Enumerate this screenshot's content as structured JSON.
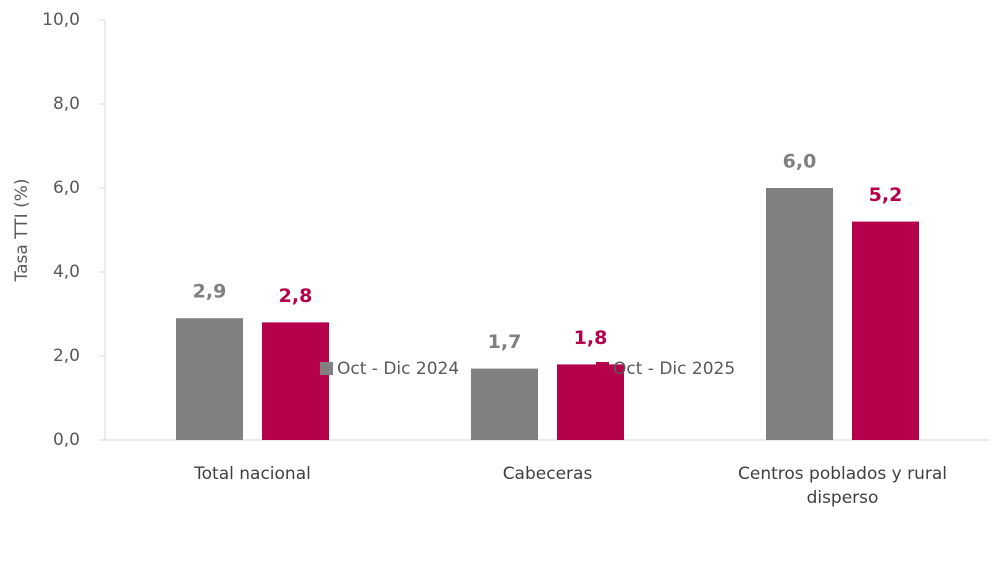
{
  "chart_data": {
    "type": "bar",
    "y_label": "Tasa TTI (%)",
    "categories": [
      "Total nacional",
      "Cabeceras",
      "Centros poblados y rural disperso"
    ],
    "series": [
      {
        "name": "Oct - Dic 2024",
        "color": "#808080",
        "values": [
          2.9,
          1.7,
          6.0
        ],
        "value_labels": [
          "2,9",
          "1,7",
          "6,0"
        ]
      },
      {
        "name": "Oct - Dic 2025",
        "color": "#b5004b",
        "values": [
          2.8,
          1.8,
          5.2
        ],
        "value_labels": [
          "2,8",
          "1,8",
          "5,2"
        ]
      }
    ],
    "ylim": [
      0,
      10
    ],
    "yticks": [
      {
        "value": 0,
        "label": "0,0"
      },
      {
        "value": 2,
        "label": "2,0"
      },
      {
        "value": 4,
        "label": "4,0"
      },
      {
        "value": 6,
        "label": "6,0"
      },
      {
        "value": 8,
        "label": "8,0"
      },
      {
        "value": 10,
        "label": "10,0"
      }
    ],
    "grid": false,
    "legend": "bottom"
  }
}
